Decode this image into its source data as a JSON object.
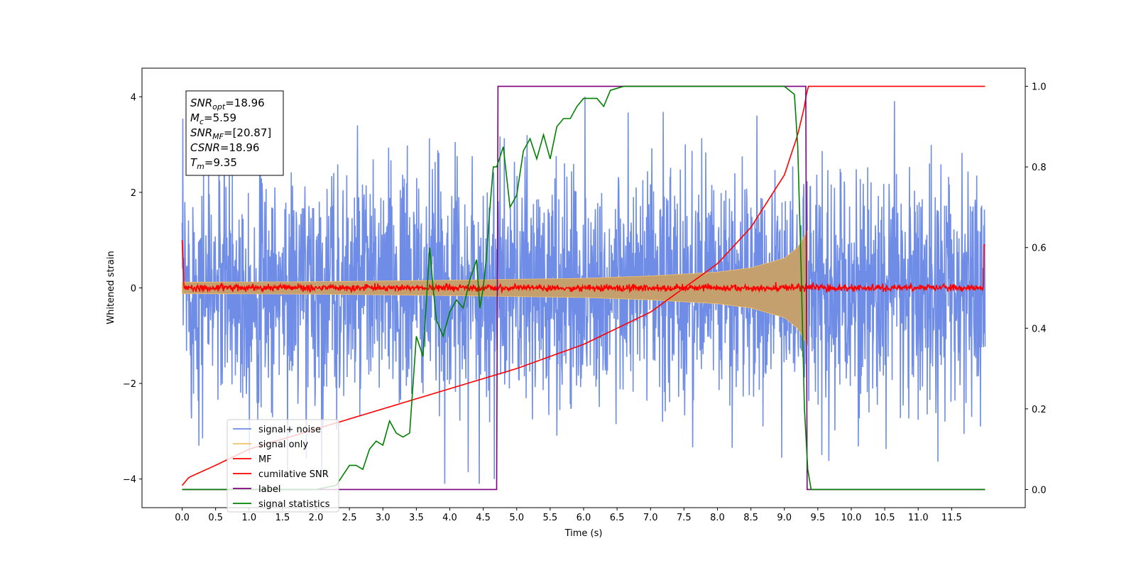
{
  "chart_data": {
    "type": "line",
    "xlabel": "Time (s)",
    "ylabel": "Whitened strain",
    "xlim": [
      -0.6,
      12.6
    ],
    "ylim": [
      -4.6,
      4.6
    ],
    "y2lim": [
      -0.045,
      1.045
    ],
    "xticks": [
      "0.0",
      "0.5",
      "1.0",
      "1.5",
      "2.0",
      "2.5",
      "3.0",
      "3.5",
      "4.0",
      "4.5",
      "5.0",
      "5.5",
      "6.0",
      "6.5",
      "7.0",
      "7.5",
      "8.0",
      "8.5",
      "9.0",
      "9.5",
      "10.0",
      "10.5",
      "11.0",
      "11.5"
    ],
    "yticks": [
      -4,
      -2,
      0,
      2,
      4
    ],
    "y2ticks": [
      "0.0",
      "0.2",
      "0.4",
      "0.6",
      "0.8",
      "1.0"
    ],
    "annotations": [
      {
        "base": "SNR",
        "sub": "opt",
        "value": "=18.96"
      },
      {
        "base": "M",
        "sub": "c",
        "value": "=5.59"
      },
      {
        "base": "SNR",
        "sub": "MF",
        "value": "=[20.87]"
      },
      {
        "base": "CSNR",
        "sub": "",
        "value": "=18.96"
      },
      {
        "base": "T",
        "sub": "m",
        "value": "=9.35"
      }
    ],
    "legend_placement": "lower-left",
    "series": [
      {
        "name": "signal+ noise",
        "color": "#6f8de6",
        "axis": "left",
        "kind": "noise",
        "amplitude_range": [
          -4.1,
          4.2
        ],
        "x_range": [
          0.0,
          12.0
        ]
      },
      {
        "name": "signal only",
        "color": "#f5c06a",
        "axis": "left",
        "kind": "chirp",
        "fill_color": "#c4a06e",
        "envelope_x": [
          0.0,
          2.0,
          4.0,
          6.0,
          7.0,
          8.0,
          8.5,
          9.0,
          9.2,
          9.35
        ],
        "envelope_y": [
          0.12,
          0.13,
          0.16,
          0.2,
          0.25,
          0.33,
          0.42,
          0.62,
          0.85,
          1.2
        ]
      },
      {
        "name": "MF",
        "color": "#ff0000",
        "axis": "left",
        "kind": "noise-small",
        "amplitude_range": [
          -0.08,
          0.12
        ],
        "x_range": [
          0.0,
          12.0
        ]
      },
      {
        "name": "cumilative SNR",
        "color": "#ff0000",
        "axis": "right",
        "x": [
          0.0,
          0.1,
          0.5,
          1.0,
          2.0,
          3.0,
          4.0,
          5.0,
          6.0,
          7.0,
          7.5,
          8.0,
          8.5,
          9.0,
          9.2,
          9.3,
          9.35,
          12.0
        ],
        "values": [
          0.01,
          0.03,
          0.06,
          0.1,
          0.15,
          0.2,
          0.25,
          0.3,
          0.36,
          0.44,
          0.5,
          0.56,
          0.65,
          0.78,
          0.88,
          0.95,
          1.0,
          1.0
        ]
      },
      {
        "name": "label",
        "color": "#7f007f",
        "axis": "right",
        "x": [
          0.0,
          4.7,
          4.72,
          9.32,
          9.34,
          12.0
        ],
        "values": [
          0.0,
          0.0,
          1.0,
          1.0,
          0.0,
          0.0
        ]
      },
      {
        "name": "signal statistics",
        "color": "#008000",
        "axis": "right",
        "x": [
          0.0,
          0.5,
          1.0,
          1.5,
          2.0,
          2.3,
          2.5,
          2.6,
          2.7,
          2.8,
          2.9,
          3.0,
          3.1,
          3.2,
          3.3,
          3.4,
          3.5,
          3.6,
          3.7,
          3.75,
          3.8,
          3.9,
          4.0,
          4.1,
          4.2,
          4.3,
          4.4,
          4.45,
          4.5,
          4.55,
          4.6,
          4.65,
          4.7,
          4.8,
          4.9,
          5.0,
          5.1,
          5.2,
          5.3,
          5.4,
          5.5,
          5.6,
          5.7,
          5.8,
          5.9,
          6.0,
          6.1,
          6.2,
          6.3,
          6.4,
          6.6,
          7.0,
          8.0,
          9.0,
          9.15,
          9.2,
          9.25,
          9.3,
          9.35,
          9.4,
          12.0
        ],
        "values": [
          0.0,
          0.0,
          0.0,
          0.0,
          0.0,
          0.01,
          0.06,
          0.06,
          0.05,
          0.1,
          0.12,
          0.11,
          0.17,
          0.14,
          0.13,
          0.14,
          0.38,
          0.33,
          0.6,
          0.5,
          0.42,
          0.38,
          0.44,
          0.47,
          0.45,
          0.52,
          0.57,
          0.45,
          0.5,
          0.58,
          0.7,
          0.8,
          0.8,
          0.85,
          0.7,
          0.73,
          0.84,
          0.87,
          0.82,
          0.88,
          0.82,
          0.9,
          0.92,
          0.92,
          0.95,
          0.97,
          0.97,
          0.97,
          0.95,
          0.99,
          1.0,
          1.0,
          1.0,
          1.0,
          0.98,
          0.85,
          0.55,
          0.2,
          0.05,
          0.0,
          0.0
        ]
      }
    ]
  }
}
